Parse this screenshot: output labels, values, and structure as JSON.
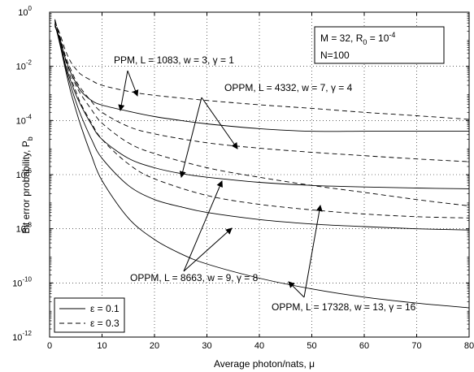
{
  "chart_data": {
    "type": "line",
    "xlabel": "Average photon/nats, μ",
    "ylabel": "Bit error probability, P",
    "ylabel_sub": "b",
    "xlim": [
      0,
      80
    ],
    "ylim_exp": [
      -12,
      0
    ],
    "y_scale": "log",
    "grid": true,
    "x_ticks": [
      "0",
      "10",
      "20",
      "30",
      "40",
      "50",
      "60",
      "70",
      "80"
    ],
    "y_ticks": [
      {
        "base": "10",
        "exp": "-12"
      },
      {
        "base": "10",
        "exp": "-10"
      },
      {
        "base": "10",
        "exp": "-8"
      },
      {
        "base": "10",
        "exp": "-6"
      },
      {
        "base": "10",
        "exp": "-4"
      },
      {
        "base": "10",
        "exp": "-2"
      },
      {
        "base": "10",
        "exp": "0"
      }
    ],
    "params_box": {
      "line1_prefix": "M = 32, R",
      "line1_sub": "0",
      "line1_mid": " = 10",
      "line1_sup": "-4",
      "line2": "N=100"
    },
    "legend": [
      {
        "label": "ε = 0.1",
        "style": "solid"
      },
      {
        "label": "ε = 0.3",
        "style": "dashed"
      }
    ],
    "annotations": [
      {
        "text": "PPM, L = 1083, w = 3, γ = 1"
      },
      {
        "text": "OPPM, L = 4332, w = 7, γ = 4"
      },
      {
        "text": "OPPM, L = 8663, w = 9, γ = 8"
      },
      {
        "text": "OPPM, L = 17328, w = 13, γ = 16"
      }
    ],
    "series": [
      {
        "scheme": "PPM, L = 1083, w = 3, γ = 1",
        "epsilon": "ε = 0.1",
        "style": "solid",
        "points": [
          [
            1,
            0.3
          ],
          [
            2,
            0.1
          ],
          [
            3,
            0.02
          ],
          [
            4,
            0.006
          ],
          [
            5,
            0.0025
          ],
          [
            6,
            0.0012
          ],
          [
            8,
            0.00055
          ],
          [
            10,
            0.00037
          ],
          [
            15,
            0.00022
          ],
          [
            20,
            0.00014
          ],
          [
            25,
            0.0001
          ],
          [
            30,
            7.5e-05
          ],
          [
            40,
            5e-05
          ],
          [
            50,
            4e-05
          ],
          [
            60,
            4e-05
          ],
          [
            70,
            4e-05
          ],
          [
            80,
            4e-05
          ]
        ]
      },
      {
        "scheme": "PPM, L = 1083, w = 3, γ = 1",
        "epsilon": "ε = 0.3",
        "style": "dashed",
        "points": [
          [
            1,
            0.45
          ],
          [
            2,
            0.15
          ],
          [
            3,
            0.04
          ],
          [
            4,
            0.015
          ],
          [
            5,
            0.008
          ],
          [
            6,
            0.005
          ],
          [
            8,
            0.003
          ],
          [
            10,
            0.002
          ],
          [
            15,
            0.0012
          ],
          [
            20,
            0.00085
          ],
          [
            30,
            0.00055
          ],
          [
            40,
            0.00038
          ],
          [
            50,
            0.00028
          ],
          [
            60,
            0.0002
          ],
          [
            70,
            0.00015
          ],
          [
            80,
            0.00011
          ]
        ]
      },
      {
        "scheme": "OPPM, L = 4332, w = 7, γ = 4",
        "epsilon": "ε = 0.1",
        "style": "solid",
        "points": [
          [
            1,
            0.35
          ],
          [
            2,
            0.08
          ],
          [
            3,
            0.012
          ],
          [
            4,
            0.003
          ],
          [
            5,
            0.0009
          ],
          [
            6,
            0.00035
          ],
          [
            8,
            7e-05
          ],
          [
            10,
            2e-05
          ],
          [
            15,
            4e-06
          ],
          [
            20,
            1.8e-06
          ],
          [
            25,
            1.1e-06
          ],
          [
            30,
            8e-07
          ],
          [
            40,
            5.2e-07
          ],
          [
            50,
            4e-07
          ],
          [
            60,
            3.5e-07
          ],
          [
            70,
            3.2e-07
          ],
          [
            80,
            3e-07
          ]
        ]
      },
      {
        "scheme": "OPPM, L = 4332, w = 7, γ = 4",
        "epsilon": "ε = 0.3",
        "style": "dashed",
        "points": [
          [
            1,
            0.5
          ],
          [
            2,
            0.12
          ],
          [
            3,
            0.025
          ],
          [
            4,
            0.008
          ],
          [
            5,
            0.003
          ],
          [
            6,
            0.0015
          ],
          [
            8,
            0.0005
          ],
          [
            10,
            0.0002
          ],
          [
            15,
            6e-05
          ],
          [
            20,
            3.2e-05
          ],
          [
            30,
            1.5e-05
          ],
          [
            40,
            9.5e-06
          ],
          [
            50,
            6.7e-06
          ],
          [
            60,
            5e-06
          ],
          [
            70,
            3.8e-06
          ],
          [
            80,
            3e-06
          ]
        ]
      },
      {
        "scheme": "OPPM, L = 8663, w = 9, γ = 8",
        "epsilon": "ε = 0.1",
        "style": "solid",
        "points": [
          [
            1,
            0.35
          ],
          [
            2,
            0.07
          ],
          [
            3,
            0.01
          ],
          [
            4,
            0.002
          ],
          [
            5,
            0.0005
          ],
          [
            6,
            0.00015
          ],
          [
            8,
            2e-05
          ],
          [
            10,
            4e-06
          ],
          [
            15,
            4e-07
          ],
          [
            20,
            1.2e-07
          ],
          [
            25,
            6.5e-08
          ],
          [
            30,
            4e-08
          ],
          [
            40,
            2.2e-08
          ],
          [
            50,
            1.5e-08
          ],
          [
            60,
            1.2e-08
          ],
          [
            70,
            1e-08
          ],
          [
            80,
            9e-09
          ]
        ]
      },
      {
        "scheme": "OPPM, L = 8663, w = 9, γ = 8",
        "epsilon": "ε = 0.3",
        "style": "dashed",
        "points": [
          [
            1,
            0.5
          ],
          [
            2,
            0.1
          ],
          [
            3,
            0.02
          ],
          [
            4,
            0.006
          ],
          [
            5,
            0.002
          ],
          [
            6,
            0.0009
          ],
          [
            8,
            0.00025
          ],
          [
            10,
            8e-05
          ],
          [
            15,
            1.5e-05
          ],
          [
            20,
            6e-06
          ],
          [
            30,
            1.8e-06
          ],
          [
            40,
            8e-07
          ],
          [
            50,
            4e-07
          ],
          [
            60,
            2.2e-07
          ],
          [
            70,
            1.2e-07
          ],
          [
            80,
            7e-08
          ]
        ]
      },
      {
        "scheme": "OPPM, L = 17328, w = 13, γ = 16",
        "epsilon": "ε = 0.1",
        "style": "solid",
        "points": [
          [
            1,
            0.4
          ],
          [
            2,
            0.06
          ],
          [
            3,
            0.008
          ],
          [
            4,
            0.0012
          ],
          [
            5,
            0.00025
          ],
          [
            6,
            6e-05
          ],
          [
            8,
            5e-06
          ],
          [
            10,
            6e-07
          ],
          [
            15,
            2.5e-08
          ],
          [
            20,
            4e-09
          ],
          [
            25,
            1.2e-09
          ],
          [
            30,
            5e-10
          ],
          [
            40,
            1.5e-10
          ],
          [
            50,
            6e-11
          ],
          [
            60,
            3e-11
          ],
          [
            70,
            1.8e-11
          ],
          [
            80,
            1.2e-11
          ]
        ]
      },
      {
        "scheme": "OPPM, L = 17328, w = 13, γ = 16",
        "epsilon": "ε = 0.3",
        "style": "dashed",
        "points": [
          [
            1,
            0.55
          ],
          [
            2,
            0.1
          ],
          [
            3,
            0.018
          ],
          [
            4,
            0.004
          ],
          [
            5,
            0.0012
          ],
          [
            6,
            0.0004
          ],
          [
            8,
            8e-05
          ],
          [
            10,
            2e-05
          ],
          [
            15,
            2.5e-06
          ],
          [
            20,
            7e-07
          ],
          [
            30,
            1.7e-07
          ],
          [
            40,
            8e-08
          ],
          [
            50,
            5e-08
          ],
          [
            60,
            3.5e-08
          ],
          [
            70,
            2.8e-08
          ],
          [
            80,
            2.5e-08
          ]
        ]
      }
    ]
  }
}
